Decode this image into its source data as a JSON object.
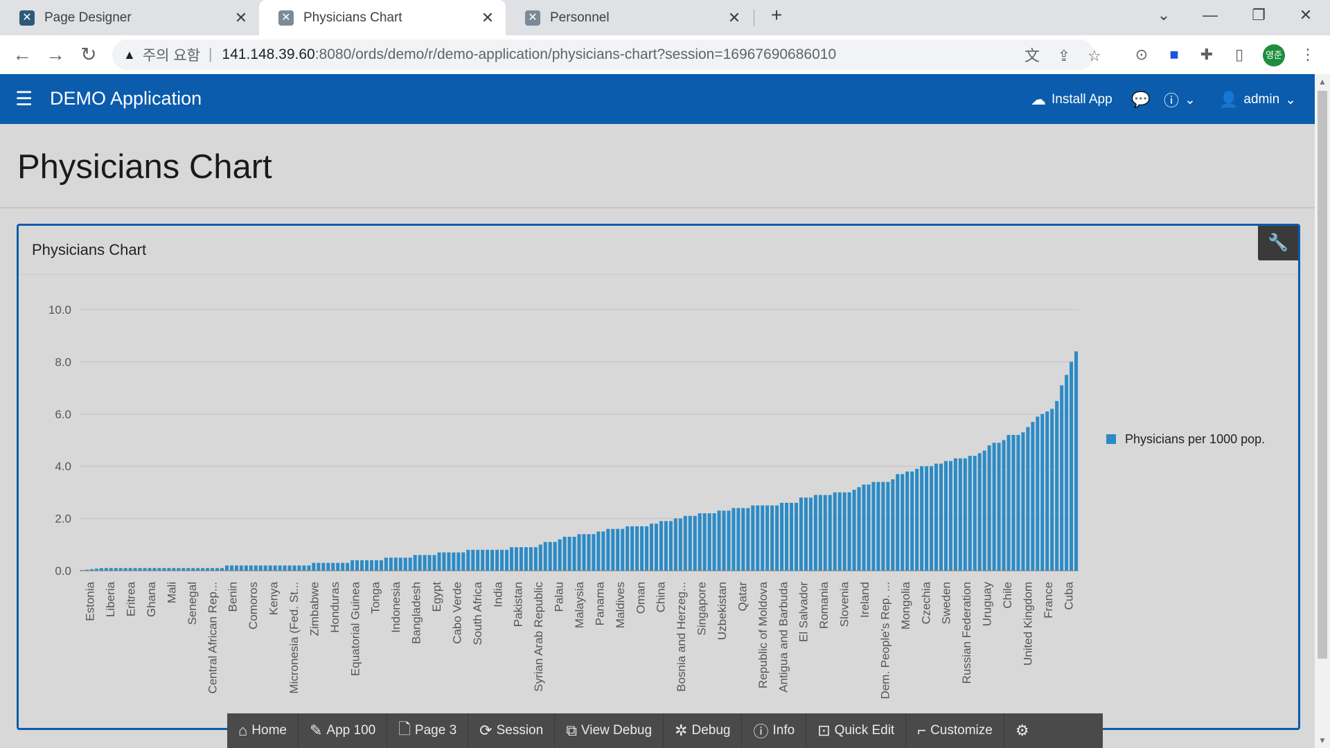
{
  "browser": {
    "tabs": [
      {
        "label": "Page Designer",
        "active": false
      },
      {
        "label": "Physicians Chart",
        "active": true
      },
      {
        "label": "Personnel",
        "active": false
      }
    ],
    "new_tab": "+",
    "address": {
      "security_label": "주의 요함",
      "host": "141.148.39.60",
      "path": ":8080/ords/demo/r/demo-application/physicians-chart?session=16967690686010"
    },
    "profile_initials": "영준"
  },
  "app": {
    "title": "DEMO Application",
    "header": {
      "install_label": "Install App",
      "user_label": "admin"
    },
    "page_title": "Physicians Chart",
    "region_title": "Physicians Chart",
    "accent": "#0b5cad",
    "bar_color": "#2b8bc6"
  },
  "chart_data": {
    "type": "bar",
    "title": "",
    "xlabel": "",
    "ylabel": "",
    "ylim": [
      0,
      10
    ],
    "y_ticks": [
      "0.0",
      "2.0",
      "4.0",
      "6.0",
      "8.0",
      "10.0"
    ],
    "legend_position": "right",
    "grid": true,
    "series": [
      {
        "name": "Physicians per 1000 pop.",
        "values": [
          0.02,
          0.04,
          0.06,
          0.08,
          0.1,
          0.1,
          0.1,
          0.1,
          0.1,
          0.1,
          0.1,
          0.1,
          0.1,
          0.1,
          0.1,
          0.1,
          0.1,
          0.1,
          0.1,
          0.1,
          0.1,
          0.1,
          0.1,
          0.1,
          0.1,
          0.1,
          0.1,
          0.1,
          0.1,
          0.1,
          0.2,
          0.2,
          0.2,
          0.2,
          0.2,
          0.2,
          0.2,
          0.2,
          0.2,
          0.2,
          0.2,
          0.2,
          0.2,
          0.2,
          0.2,
          0.2,
          0.2,
          0.2,
          0.3,
          0.3,
          0.3,
          0.3,
          0.3,
          0.3,
          0.3,
          0.3,
          0.4,
          0.4,
          0.4,
          0.4,
          0.4,
          0.4,
          0.4,
          0.5,
          0.5,
          0.5,
          0.5,
          0.5,
          0.5,
          0.6,
          0.6,
          0.6,
          0.6,
          0.6,
          0.7,
          0.7,
          0.7,
          0.7,
          0.7,
          0.7,
          0.8,
          0.8,
          0.8,
          0.8,
          0.8,
          0.8,
          0.8,
          0.8,
          0.8,
          0.9,
          0.9,
          0.9,
          0.9,
          0.9,
          0.9,
          1.0,
          1.1,
          1.1,
          1.1,
          1.2,
          1.3,
          1.3,
          1.3,
          1.4,
          1.4,
          1.4,
          1.4,
          1.5,
          1.5,
          1.6,
          1.6,
          1.6,
          1.6,
          1.7,
          1.7,
          1.7,
          1.7,
          1.7,
          1.8,
          1.8,
          1.9,
          1.9,
          1.9,
          2.0,
          2.0,
          2.1,
          2.1,
          2.1,
          2.2,
          2.2,
          2.2,
          2.2,
          2.3,
          2.3,
          2.3,
          2.4,
          2.4,
          2.4,
          2.4,
          2.5,
          2.5,
          2.5,
          2.5,
          2.5,
          2.5,
          2.6,
          2.6,
          2.6,
          2.6,
          2.8,
          2.8,
          2.8,
          2.9,
          2.9,
          2.9,
          2.9,
          3.0,
          3.0,
          3.0,
          3.0,
          3.1,
          3.2,
          3.3,
          3.3,
          3.4,
          3.4,
          3.4,
          3.4,
          3.5,
          3.7,
          3.7,
          3.8,
          3.8,
          3.9,
          4.0,
          4.0,
          4.0,
          4.1,
          4.1,
          4.2,
          4.2,
          4.3,
          4.3,
          4.3,
          4.4,
          4.4,
          4.5,
          4.6,
          4.8,
          4.9,
          4.9,
          5.0,
          5.2,
          5.2,
          5.2,
          5.3,
          5.5,
          5.7,
          5.9,
          6.0,
          6.1,
          6.2,
          6.5,
          7.1,
          7.5,
          8.0,
          8.4
        ]
      }
    ],
    "category_labels": [
      "Estonia",
      "Liberia",
      "Eritrea",
      "Ghana",
      "Mali",
      "Senegal",
      "Central African Rep...",
      "Benin",
      "Comoros",
      "Kenya",
      "Micronesia (Fed. St...",
      "Zimbabwe",
      "Honduras",
      "Equatorial Guinea",
      "Tonga",
      "Indonesia",
      "Bangladesh",
      "Egypt",
      "Cabo Verde",
      "South Africa",
      "India",
      "Pakistan",
      "Syrian Arab Republic",
      "Palau",
      "Malaysia",
      "Panama",
      "Maldives",
      "Oman",
      "China",
      "Bosnia and Herzeg...",
      "Singapore",
      "Uzbekistan",
      "Qatar",
      "Republic of Moldova",
      "Antigua and Barbuda",
      "El Salvador",
      "Romania",
      "Slovenia",
      "Ireland",
      "Dem. People's Rep. ...",
      "Mongolia",
      "Czechia",
      "Sweden",
      "Russian Federation",
      "Uruguay",
      "Chile",
      "United Kingdom",
      "France",
      "Cuba"
    ]
  },
  "dev_toolbar": {
    "items": [
      {
        "label": "Home",
        "icon": "home-icon"
      },
      {
        "label": "App 100",
        "icon": "edit-icon"
      },
      {
        "label": "Page 3",
        "icon": "page-edit-icon"
      },
      {
        "label": "Session",
        "icon": "session-icon"
      },
      {
        "label": "View Debug",
        "icon": "debug-view-icon"
      },
      {
        "label": "Debug",
        "icon": "bug-icon"
      },
      {
        "label": "Info",
        "icon": "info-icon"
      },
      {
        "label": "Quick Edit",
        "icon": "quick-edit-icon"
      },
      {
        "label": "Customize",
        "icon": "paint-roller-icon"
      }
    ]
  }
}
